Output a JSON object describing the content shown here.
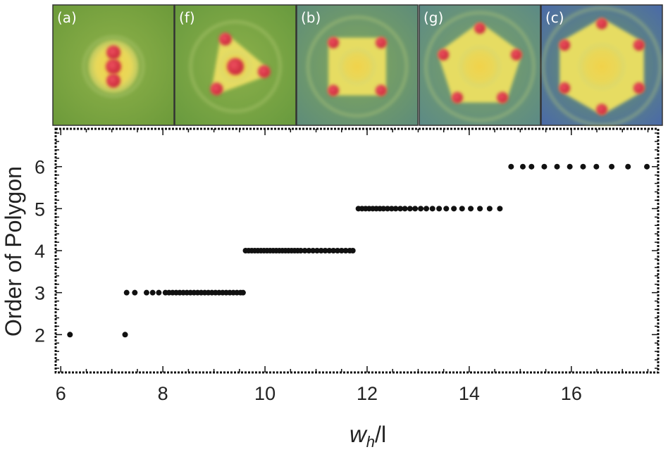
{
  "panels": [
    {
      "label": "(a)",
      "order": 2
    },
    {
      "label": "(f)",
      "order": 3
    },
    {
      "label": "(b)",
      "order": 4
    },
    {
      "label": "(g)",
      "order": 5
    },
    {
      "label": "(c)",
      "order": 6
    }
  ],
  "chart_data": {
    "type": "scatter",
    "xlabel_main": "w",
    "xlabel_sub": "h",
    "xlabel_tail": "/l",
    "ylabel": "Order of Polygon",
    "xlim": [
      5.9,
      17.7
    ],
    "ylim": [
      1.1,
      6.9
    ],
    "xticks": [
      6,
      8,
      10,
      12,
      14,
      16
    ],
    "yticks": [
      2,
      3,
      4,
      5,
      6
    ],
    "grid": false,
    "series": [
      {
        "values": [
          [
            6.18,
            2
          ],
          [
            7.26,
            2
          ],
          [
            7.29,
            3
          ],
          [
            7.45,
            3
          ],
          [
            7.68,
            3
          ],
          [
            7.8,
            3
          ],
          [
            7.92,
            3
          ],
          [
            8.05,
            3
          ],
          [
            8.12,
            3
          ],
          [
            8.19,
            3
          ],
          [
            8.26,
            3
          ],
          [
            8.33,
            3
          ],
          [
            8.4,
            3
          ],
          [
            8.47,
            3
          ],
          [
            8.54,
            3
          ],
          [
            8.61,
            3
          ],
          [
            8.68,
            3
          ],
          [
            8.75,
            3
          ],
          [
            8.82,
            3
          ],
          [
            8.89,
            3
          ],
          [
            8.96,
            3
          ],
          [
            9.03,
            3
          ],
          [
            9.1,
            3
          ],
          [
            9.17,
            3
          ],
          [
            9.24,
            3
          ],
          [
            9.31,
            3
          ],
          [
            9.38,
            3
          ],
          [
            9.45,
            3
          ],
          [
            9.52,
            3
          ],
          [
            9.57,
            3
          ],
          [
            9.62,
            4
          ],
          [
            9.68,
            4
          ],
          [
            9.74,
            4
          ],
          [
            9.8,
            4
          ],
          [
            9.86,
            4
          ],
          [
            9.92,
            4
          ],
          [
            9.98,
            4
          ],
          [
            10.04,
            4
          ],
          [
            10.1,
            4
          ],
          [
            10.16,
            4
          ],
          [
            10.22,
            4
          ],
          [
            10.28,
            4
          ],
          [
            10.34,
            4
          ],
          [
            10.4,
            4
          ],
          [
            10.46,
            4
          ],
          [
            10.52,
            4
          ],
          [
            10.58,
            4
          ],
          [
            10.64,
            4
          ],
          [
            10.7,
            4
          ],
          [
            10.78,
            4
          ],
          [
            10.86,
            4
          ],
          [
            10.94,
            4
          ],
          [
            11.02,
            4
          ],
          [
            11.1,
            4
          ],
          [
            11.18,
            4
          ],
          [
            11.26,
            4
          ],
          [
            11.34,
            4
          ],
          [
            11.42,
            4
          ],
          [
            11.5,
            4
          ],
          [
            11.58,
            4
          ],
          [
            11.66,
            4
          ],
          [
            11.72,
            4
          ],
          [
            11.83,
            5
          ],
          [
            11.9,
            5
          ],
          [
            11.97,
            5
          ],
          [
            12.04,
            5
          ],
          [
            12.11,
            5
          ],
          [
            12.18,
            5
          ],
          [
            12.25,
            5
          ],
          [
            12.32,
            5
          ],
          [
            12.4,
            5
          ],
          [
            12.48,
            5
          ],
          [
            12.56,
            5
          ],
          [
            12.65,
            5
          ],
          [
            12.74,
            5
          ],
          [
            12.84,
            5
          ],
          [
            12.94,
            5
          ],
          [
            13.05,
            5
          ],
          [
            13.16,
            5
          ],
          [
            13.28,
            5
          ],
          [
            13.41,
            5
          ],
          [
            13.55,
            5
          ],
          [
            13.7,
            5
          ],
          [
            13.86,
            5
          ],
          [
            14.03,
            5
          ],
          [
            14.21,
            5
          ],
          [
            14.4,
            5
          ],
          [
            14.6,
            5
          ],
          [
            14.82,
            6
          ],
          [
            15.05,
            6
          ],
          [
            15.22,
            6
          ],
          [
            15.47,
            6
          ],
          [
            15.72,
            6
          ],
          [
            15.97,
            6
          ],
          [
            16.23,
            6
          ],
          [
            16.49,
            6
          ],
          [
            16.79,
            6
          ],
          [
            17.11,
            6
          ],
          [
            17.48,
            6
          ]
        ]
      }
    ]
  }
}
